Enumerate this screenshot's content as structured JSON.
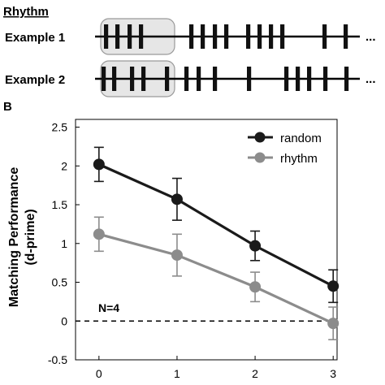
{
  "panel_a": {
    "title": "Rhythm",
    "ellipsis": "...",
    "rows": [
      {
        "label": "Example 1",
        "pulse_groups": [
          [
            1,
            2,
            3,
            4
          ],
          [
            6,
            7,
            8,
            9
          ],
          [
            11,
            12,
            13,
            14
          ],
          [
            16,
            17
          ]
        ]
      },
      {
        "label": "Example 2",
        "pulse_groups": [
          [
            1,
            2
          ],
          [
            3,
            4
          ],
          [
            6
          ],
          [
            7,
            8
          ],
          [
            9
          ],
          [
            11
          ],
          [
            12,
            13,
            14
          ],
          [
            16,
            17
          ]
        ]
      }
    ]
  },
  "panel_b_label": "B",
  "chart_data": {
    "type": "line",
    "ylabel_line1": "Matching Performance",
    "ylabel_line2": "(d-prime)",
    "xlabel": "",
    "x": [
      0,
      1,
      2,
      3
    ],
    "xlim": [
      -0.3,
      3.05
    ],
    "ylim": [
      -0.5,
      2.6
    ],
    "yticks": [
      -0.5,
      0,
      0.5,
      1,
      1.5,
      2,
      2.5
    ],
    "ytick_labels": [
      "-0.5",
      "0",
      "0.5",
      "1",
      "1.5",
      "2",
      "2.5"
    ],
    "xtick_labels": [
      "0",
      "1",
      "2",
      "3"
    ],
    "reference_line_y": 0,
    "annotation": "N=4",
    "legend_position": "top-right",
    "series": [
      {
        "name": "random",
        "color": "#1a1a1a",
        "values": [
          2.02,
          1.57,
          0.97,
          0.45
        ],
        "err": [
          0.22,
          0.27,
          0.19,
          0.21
        ]
      },
      {
        "name": "rhythm",
        "color": "#8c8c8c",
        "values": [
          1.12,
          0.85,
          0.44,
          -0.03
        ],
        "err": [
          0.22,
          0.27,
          0.19,
          0.21
        ]
      }
    ]
  }
}
